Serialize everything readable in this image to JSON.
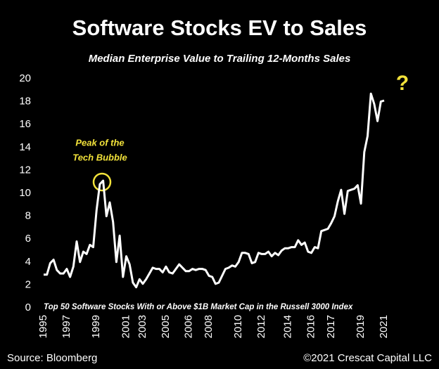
{
  "chart_data": {
    "type": "line",
    "title": "Software Stocks EV to Sales",
    "subtitle": "Median Enterprise Value to Trailing 12-Months Sales",
    "annotation": [
      "Peak of the",
      "Tech Bubble"
    ],
    "question_mark": "?",
    "note": "Top 50 Software Stocks With or Above $1B Market Cap in the Russell 3000 Index",
    "source": "Source: Bloomberg",
    "copyright": "©2021 Crescat Capital LLC",
    "categories": [
      "1995",
      null,
      null,
      null,
      null,
      null,
      null,
      "1997",
      null,
      null,
      null,
      null,
      null,
      null,
      null,
      null,
      "1999",
      null,
      null,
      null,
      null,
      null,
      null,
      null,
      null,
      "2001",
      null,
      null,
      null,
      null,
      "2003",
      null,
      null,
      null,
      null,
      null,
      null,
      "2005",
      null,
      null,
      null,
      null,
      null,
      null,
      "2006",
      null,
      null,
      null,
      null,
      null,
      "2008",
      null,
      null,
      null,
      null,
      null,
      null,
      null,
      null,
      "2010",
      null,
      null,
      null,
      null,
      null,
      null,
      "2012",
      null,
      null,
      null,
      null,
      null,
      null,
      null,
      "2014",
      null,
      null,
      null,
      null,
      null,
      null,
      "2016",
      null,
      null,
      null,
      null,
      null,
      "2017",
      null,
      null,
      null,
      null,
      null,
      null,
      null,
      null,
      "2019",
      null,
      null,
      null,
      null,
      null,
      null,
      "2021"
    ],
    "series": [
      {
        "name": "EV to Sales",
        "color": "#ffffff",
        "values": [
          2.9,
          2.9,
          3.9,
          4.2,
          3.3,
          3.0,
          3.0,
          3.4,
          2.7,
          3.6,
          5.8,
          4.0,
          4.9,
          4.7,
          5.5,
          5.3,
          8.5,
          10.8,
          11.1,
          8.0,
          9.2,
          7.5,
          4.0,
          6.3,
          2.7,
          4.5,
          3.8,
          2.2,
          1.8,
          2.5,
          2.1,
          2.5,
          3.0,
          3.5,
          3.4,
          3.4,
          3.1,
          3.6,
          3.1,
          3.0,
          3.4,
          3.8,
          3.5,
          3.2,
          3.2,
          3.4,
          3.3,
          3.4,
          3.4,
          3.3,
          2.8,
          2.7,
          2.1,
          2.2,
          2.8,
          3.4,
          3.5,
          3.7,
          3.6,
          4.0,
          4.8,
          4.8,
          4.7,
          3.9,
          4.0,
          4.8,
          4.7,
          4.7,
          4.9,
          4.5,
          4.8,
          4.6,
          5.0,
          5.2,
          5.2,
          5.3,
          5.3,
          5.9,
          5.5,
          5.7,
          4.9,
          4.8,
          5.3,
          5.2,
          6.7,
          6.8,
          6.9,
          7.4,
          8.0,
          9.3,
          10.3,
          8.2,
          10.2,
          10.3,
          10.4,
          10.7,
          9.1,
          13.6,
          15.0,
          18.7,
          17.8,
          16.3,
          18.0,
          18.1
        ]
      }
    ],
    "ylim": [
      0,
      20
    ],
    "yticks": [
      0,
      2,
      4,
      6,
      8,
      10,
      12,
      14,
      16,
      18,
      20
    ],
    "grid": false
  }
}
